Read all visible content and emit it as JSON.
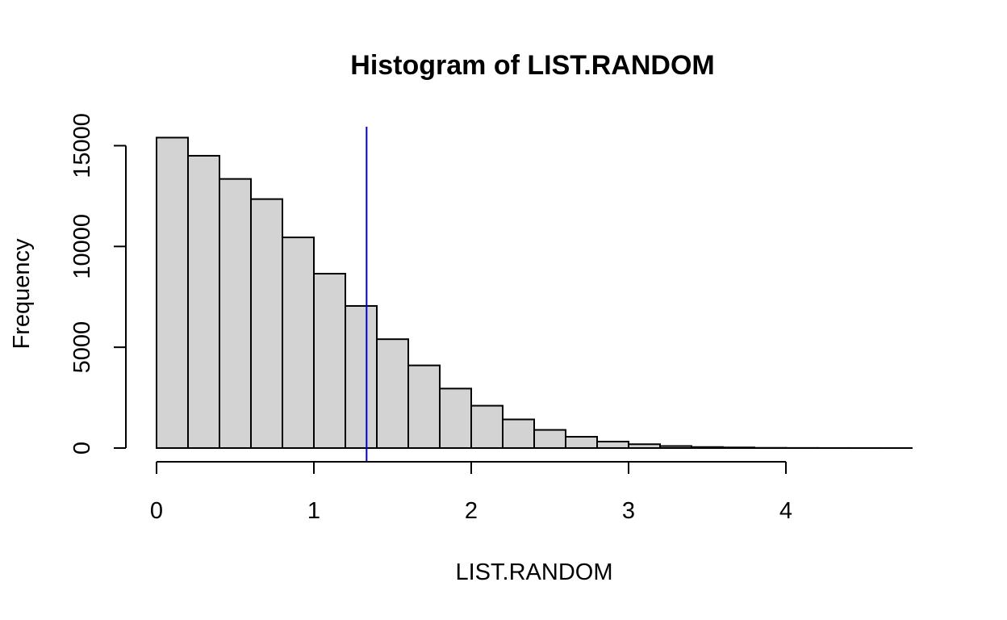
{
  "chart_data": {
    "type": "bar",
    "subtype": "histogram",
    "title": "Histogram of LIST.RANDOM",
    "xlabel": "LIST.RANDOM",
    "ylabel": "Frequency",
    "bin_width": 0.2,
    "bins": [
      {
        "x0": 0.0,
        "x1": 0.2,
        "count": 15400
      },
      {
        "x0": 0.2,
        "x1": 0.4,
        "count": 14500
      },
      {
        "x0": 0.4,
        "x1": 0.6,
        "count": 13350
      },
      {
        "x0": 0.6,
        "x1": 0.8,
        "count": 12350
      },
      {
        "x0": 0.8,
        "x1": 1.0,
        "count": 10450
      },
      {
        "x0": 1.0,
        "x1": 1.2,
        "count": 8650
      },
      {
        "x0": 1.2,
        "x1": 1.4,
        "count": 7050
      },
      {
        "x0": 1.4,
        "x1": 1.6,
        "count": 5400
      },
      {
        "x0": 1.6,
        "x1": 1.8,
        "count": 4100
      },
      {
        "x0": 1.8,
        "x1": 2.0,
        "count": 2950
      },
      {
        "x0": 2.0,
        "x1": 2.2,
        "count": 2100
      },
      {
        "x0": 2.2,
        "x1": 2.4,
        "count": 1420
      },
      {
        "x0": 2.4,
        "x1": 2.6,
        "count": 900
      },
      {
        "x0": 2.6,
        "x1": 2.8,
        "count": 560
      },
      {
        "x0": 2.8,
        "x1": 3.0,
        "count": 320
      },
      {
        "x0": 3.0,
        "x1": 3.2,
        "count": 190
      },
      {
        "x0": 3.2,
        "x1": 3.4,
        "count": 100
      },
      {
        "x0": 3.4,
        "x1": 3.6,
        "count": 50
      },
      {
        "x0": 3.6,
        "x1": 3.8,
        "count": 30
      },
      {
        "x0": 3.8,
        "x1": 4.0,
        "count": 10
      },
      {
        "x0": 4.0,
        "x1": 4.2,
        "count": 5
      },
      {
        "x0": 4.2,
        "x1": 4.4,
        "count": 3
      },
      {
        "x0": 4.4,
        "x1": 4.6,
        "count": 2
      },
      {
        "x0": 4.6,
        "x1": 4.8,
        "count": 1
      }
    ],
    "xlim": [
      0,
      4.8
    ],
    "ylim": [
      0,
      16000
    ],
    "x_ticks": [
      0,
      1,
      2,
      3,
      4
    ],
    "x_tick_labels": [
      "0",
      "1",
      "2",
      "3",
      "4"
    ],
    "y_ticks": [
      0,
      5000,
      10000,
      15000
    ],
    "y_tick_labels": [
      "0",
      "5000",
      "10000",
      "15000"
    ],
    "bar_fill": "#d3d3d3",
    "bar_stroke": "#000000",
    "vline": {
      "x": 1.335,
      "color": "#0000cc"
    },
    "grid": false,
    "legend": "none"
  }
}
